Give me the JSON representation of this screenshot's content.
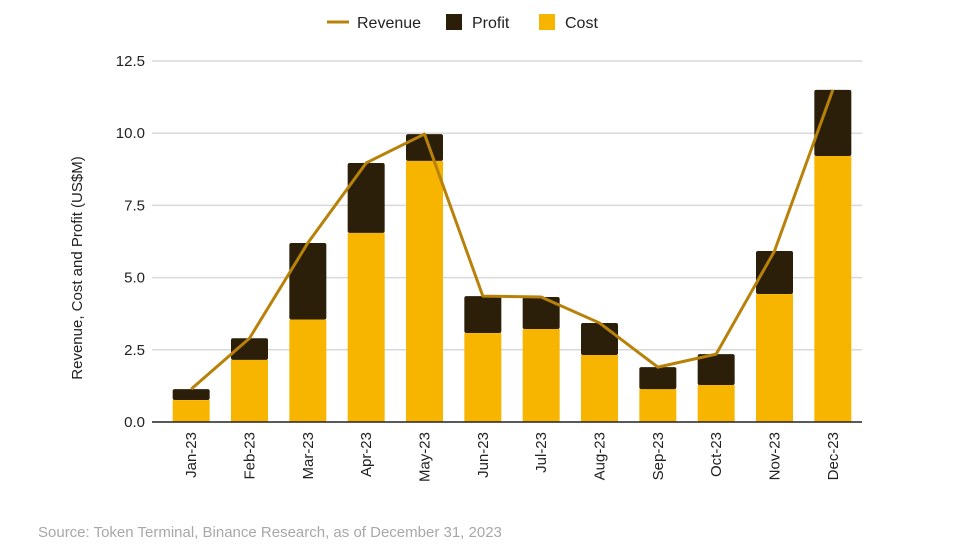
{
  "chart_data": {
    "type": "bar",
    "stacked": true,
    "title": "",
    "xlabel": "",
    "ylabel": "Revenue, Cost and Profit (US$M)",
    "ylim": [
      0,
      12.5
    ],
    "yticks": [
      "0.0",
      "2.5",
      "5.0",
      "7.5",
      "10.0",
      "12.5"
    ],
    "grid": true,
    "legend_position": "top",
    "categories": [
      "Jan-23",
      "Feb-23",
      "Mar-23",
      "Apr-23",
      "May-23",
      "Jun-23",
      "Jul-23",
      "Aug-23",
      "Sep-23",
      "Oct-23",
      "Nov-23",
      "Dec-23"
    ],
    "series": [
      {
        "name": "Cost",
        "kind": "bar",
        "color": "#F8B500",
        "values": [
          0.76,
          2.15,
          3.55,
          6.55,
          9.04,
          3.08,
          3.22,
          2.32,
          1.14,
          1.28,
          4.43,
          9.21
        ]
      },
      {
        "name": "Profit",
        "kind": "bar",
        "color": "#2B1F0A",
        "values": [
          0.38,
          0.75,
          2.65,
          2.42,
          0.93,
          1.28,
          1.11,
          1.11,
          0.76,
          1.07,
          1.49,
          2.29
        ]
      },
      {
        "name": "Revenue",
        "kind": "line",
        "color": "#B8820A",
        "values": [
          1.14,
          2.9,
          6.2,
          8.97,
          9.97,
          4.36,
          4.33,
          3.43,
          1.9,
          2.35,
          5.92,
          11.5
        ]
      }
    ]
  },
  "source": "Source: Token Terminal, Binance Research, as of December 31, 2023"
}
